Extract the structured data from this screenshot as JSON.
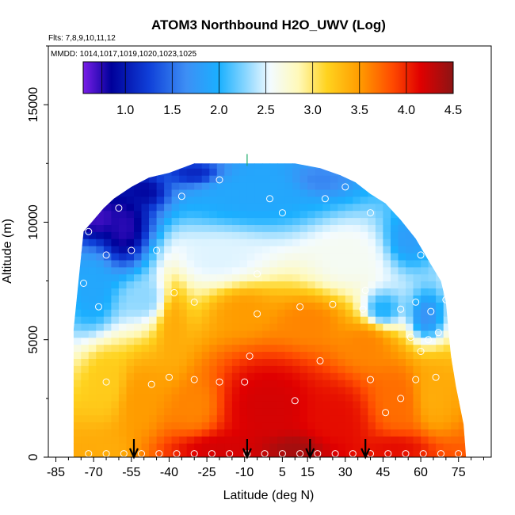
{
  "chart_data": {
    "type": "heatmap",
    "title": "ATOM3 Northbound H2O_UWV (Log)",
    "flights_label": "Flts: 7,8,9,10,11,12",
    "dates_label": "MMDD: 1014,1017,1019,1020,1023,1025",
    "xlabel": "Latitude (deg N)",
    "ylabel": "Altitude (m)",
    "xlim": [
      -88,
      88
    ],
    "ylim": [
      0,
      17500
    ],
    "x_ticks": [
      -85,
      -70,
      -55,
      -40,
      -25,
      -10,
      5,
      15,
      30,
      45,
      60,
      75
    ],
    "x_tick_labels": [
      "-85",
      "-70",
      "-55",
      "-40",
      "-25",
      "-10",
      "5",
      "15",
      "30",
      "45",
      "60",
      "75"
    ],
    "y_ticks": [
      0,
      5000,
      10000,
      15000
    ],
    "y_tick_labels": [
      "0",
      "5000",
      "10000",
      "15000"
    ],
    "colorbar": {
      "min": 0.55,
      "max": 4.5,
      "ticks": [
        1.0,
        1.5,
        2.0,
        2.5,
        3.0,
        3.5,
        4.0,
        4.5
      ],
      "tick_labels": [
        "1.0",
        "1.5",
        "2.0",
        "2.5",
        "3.0",
        "3.5",
        "4.0",
        "4.5"
      ],
      "stops": [
        {
          "v": 0.55,
          "color": "#7a1ee8"
        },
        {
          "v": 0.85,
          "color": "#00009a"
        },
        {
          "v": 1.25,
          "color": "#0f3fd8"
        },
        {
          "v": 1.65,
          "color": "#3d8ff5"
        },
        {
          "v": 2.0,
          "color": "#1ab0ff"
        },
        {
          "v": 2.3,
          "color": "#8fd8ff"
        },
        {
          "v": 2.55,
          "color": "#f3fbff"
        },
        {
          "v": 2.85,
          "color": "#fff9b8"
        },
        {
          "v": 3.15,
          "color": "#ffd31f"
        },
        {
          "v": 3.5,
          "color": "#ff9c00"
        },
        {
          "v": 3.85,
          "color": "#ff4b00"
        },
        {
          "v": 4.15,
          "color": "#e00000"
        },
        {
          "v": 4.5,
          "color": "#8c1414"
        }
      ]
    },
    "envelope_top": [
      [
        -78,
        5400
      ],
      [
        -76,
        7500
      ],
      [
        -74,
        9600
      ],
      [
        -70,
        10100
      ],
      [
        -66,
        10600
      ],
      [
        -62,
        11000
      ],
      [
        -55,
        11500
      ],
      [
        -48,
        11900
      ],
      [
        -40,
        12100
      ],
      [
        -30,
        12500
      ],
      [
        -20,
        12500
      ],
      [
        -10,
        12500
      ],
      [
        0,
        12500
      ],
      [
        10,
        12500
      ],
      [
        20,
        12300
      ],
      [
        28,
        12000
      ],
      [
        34,
        11700
      ],
      [
        40,
        11200
      ],
      [
        46,
        10800
      ],
      [
        52,
        10100
      ],
      [
        58,
        9300
      ],
      [
        64,
        8200
      ],
      [
        68,
        7500
      ],
      [
        70,
        6600
      ],
      [
        71,
        5400
      ],
      [
        72,
        4300
      ],
      [
        74,
        3000
      ],
      [
        77,
        1400
      ],
      [
        78,
        0
      ]
    ],
    "bottom_extent": [
      -78,
      78
    ],
    "field_regions": [
      {
        "x": -68,
        "y": 10200,
        "v": 0.7,
        "rx": 10,
        "ry": 900
      },
      {
        "x": -58,
        "y": 9800,
        "v": 0.75,
        "rx": 9,
        "ry": 1400
      },
      {
        "x": -50,
        "y": 11300,
        "v": 0.9,
        "rx": 8,
        "ry": 600
      },
      {
        "x": -30,
        "y": 12100,
        "v": 1.1,
        "rx": 10,
        "ry": 500
      },
      {
        "x": 20,
        "y": 11800,
        "v": 1.6,
        "rx": 12,
        "ry": 700
      },
      {
        "x": 55,
        "y": 9300,
        "v": 1.8,
        "rx": 8,
        "ry": 1000
      },
      {
        "x": 45,
        "y": 6300,
        "v": 2.0,
        "rx": 8,
        "ry": 800
      },
      {
        "x": -5,
        "y": 11200,
        "v": 1.9,
        "rx": 25,
        "ry": 1200
      },
      {
        "x": -70,
        "y": 7200,
        "v": 1.9,
        "rx": 8,
        "ry": 1500
      },
      {
        "x": 62,
        "y": 6000,
        "v": 1.7,
        "rx": 6,
        "ry": 900
      },
      {
        "x": -50,
        "y": 6800,
        "v": 2.3,
        "rx": 10,
        "ry": 900
      },
      {
        "x": -20,
        "y": 8500,
        "v": 2.5,
        "rx": 20,
        "ry": 1100
      },
      {
        "x": 30,
        "y": 8500,
        "v": 2.6,
        "rx": 15,
        "ry": 1300
      },
      {
        "x": -38,
        "y": 5500,
        "v": 3.4,
        "rx": 6,
        "ry": 2200
      },
      {
        "x": -10,
        "y": 6200,
        "v": 3.5,
        "rx": 12,
        "ry": 1000
      },
      {
        "x": 15,
        "y": 5800,
        "v": 3.6,
        "rx": 14,
        "ry": 1000
      },
      {
        "x": 38,
        "y": 4800,
        "v": 3.6,
        "rx": 12,
        "ry": 1100
      },
      {
        "x": -65,
        "y": 3200,
        "v": 3.2,
        "rx": 8,
        "ry": 1400
      },
      {
        "x": -52,
        "y": 2400,
        "v": 3.5,
        "rx": 8,
        "ry": 1500
      },
      {
        "x": -30,
        "y": 2200,
        "v": 3.6,
        "rx": 10,
        "ry": 1300
      },
      {
        "x": 0,
        "y": 2200,
        "v": 4.2,
        "rx": 18,
        "ry": 1800
      },
      {
        "x": 25,
        "y": 1600,
        "v": 4.1,
        "rx": 14,
        "ry": 1600
      },
      {
        "x": 50,
        "y": 2400,
        "v": 3.7,
        "rx": 10,
        "ry": 1600
      },
      {
        "x": 65,
        "y": 2600,
        "v": 3.4,
        "rx": 8,
        "ry": 1500
      },
      {
        "x": -20,
        "y": 400,
        "v": 4.2,
        "rx": 18,
        "ry": 700
      },
      {
        "x": 10,
        "y": 400,
        "v": 4.4,
        "rx": 15,
        "ry": 700
      },
      {
        "x": 50,
        "y": 400,
        "v": 4.1,
        "rx": 14,
        "ry": 700
      },
      {
        "x": -65,
        "y": 400,
        "v": 3.4,
        "rx": 10,
        "ry": 700
      }
    ],
    "arrows_x": [
      -54,
      -9,
      16,
      38
    ]
  }
}
